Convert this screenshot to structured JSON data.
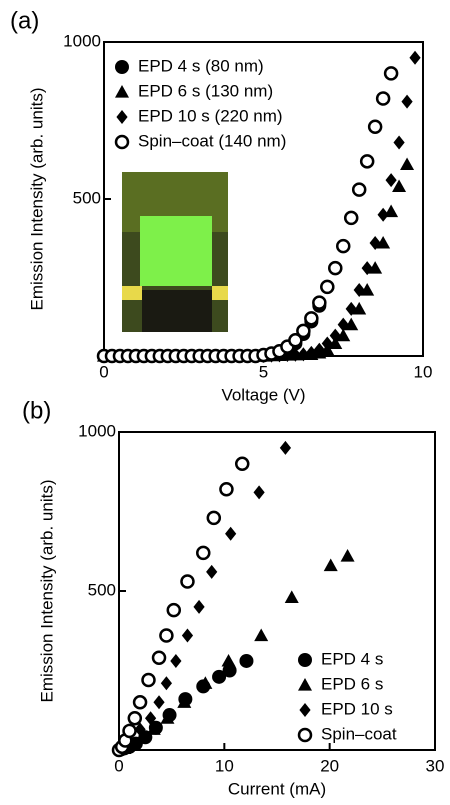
{
  "chart_data": [
    {
      "type": "scatter",
      "panel_label": "(a)",
      "x_label": "Voltage (V)",
      "y_label": "Emission Intensity (arb. units)",
      "xlim": [
        0,
        10
      ],
      "ylim": [
        0,
        1000
      ],
      "xticks": [
        0,
        5,
        10
      ],
      "yticks": [
        500,
        1000
      ],
      "legend": "upper left",
      "x": [
        0,
        0.25,
        0.5,
        0.75,
        1,
        1.25,
        1.5,
        1.75,
        2,
        2.25,
        2.5,
        2.75,
        3,
        3.25,
        3.5,
        3.75,
        4,
        4.25,
        4.5,
        4.75,
        5,
        5.25,
        5.5,
        5.75,
        6,
        6.25,
        6.5,
        6.75,
        7,
        7.25,
        7.5,
        7.75,
        8,
        8.25,
        8.5,
        8.75,
        9,
        9.25,
        9.5,
        9.75
      ],
      "series": [
        {
          "name": "EPD  4 s (80 nm)",
          "color": "#000000",
          "marker": "circle",
          "values": [
            0,
            0,
            0,
            0,
            0,
            0,
            0,
            0,
            0,
            0,
            0,
            0,
            0,
            0,
            0,
            0,
            0,
            0,
            0,
            0,
            2,
            5,
            10,
            20,
            40,
            70,
            110,
            160,
            220,
            280,
            null,
            null,
            null,
            null,
            null,
            null,
            null,
            null,
            null,
            null
          ]
        },
        {
          "name": "EPD  6 s (130 nm)",
          "color": "#000000",
          "marker": "triangle",
          "values": [
            0,
            0,
            0,
            0,
            0,
            0,
            0,
            0,
            0,
            0,
            0,
            0,
            0,
            0,
            0,
            0,
            0,
            0,
            0,
            0,
            0,
            1,
            2,
            3,
            4,
            5,
            5,
            10,
            20,
            40,
            65,
            100,
            150,
            210,
            280,
            360,
            460,
            540,
            610,
            null
          ]
        },
        {
          "name": "EPD 10 s (220 nm)",
          "color": "#000000",
          "marker": "diamond",
          "values": [
            0,
            0,
            0,
            0,
            0,
            0,
            0,
            0,
            0,
            0,
            0,
            0,
            0,
            0,
            0,
            0,
            0,
            0,
            0,
            0,
            0,
            1,
            2,
            3,
            4,
            5,
            10,
            20,
            40,
            65,
            100,
            150,
            210,
            280,
            360,
            450,
            560,
            680,
            810,
            950
          ]
        },
        {
          "name": "Spin–coat (140 nm)",
          "color": "#000000",
          "marker": "open-circle",
          "values": [
            0,
            0,
            0,
            0,
            0,
            0,
            0,
            0,
            0,
            0,
            0,
            0,
            0,
            0,
            0,
            0,
            0,
            0,
            0,
            0,
            3,
            8,
            15,
            30,
            50,
            80,
            120,
            170,
            220,
            280,
            350,
            440,
            530,
            620,
            730,
            820,
            900,
            null,
            null,
            null
          ]
        }
      ]
    },
    {
      "type": "scatter",
      "panel_label": "(b)",
      "x_label": "Current (mA)",
      "y_label": "Emission Intensity (arb. units)",
      "xlim": [
        0,
        30
      ],
      "ylim": [
        0,
        1000
      ],
      "xticks": [
        0,
        10,
        20,
        30
      ],
      "yticks": [
        500,
        1000
      ],
      "legend": "lower right",
      "series": [
        {
          "name": "EPD 4 s",
          "color": "#000000",
          "marker": "circle",
          "x": [
            0.2,
            0.5,
            1,
            1.6,
            2.5,
            3.5,
            4.8,
            6.3,
            8,
            9.5,
            10.5,
            12.1
          ],
          "values": [
            2,
            5,
            10,
            20,
            40,
            70,
            110,
            160,
            200,
            230,
            250,
            280
          ]
        },
        {
          "name": "EPD 6 s",
          "color": "#000000",
          "marker": "triangle",
          "x": [
            0.5,
            1.2,
            2.2,
            3.3,
            4.6,
            6.2,
            8.2,
            10.4,
            13.5,
            16.4,
            20.1,
            21.7
          ],
          "values": [
            5,
            20,
            40,
            65,
            100,
            150,
            210,
            280,
            360,
            480,
            580,
            610
          ]
        },
        {
          "name": "EPD 10 s",
          "color": "#000000",
          "marker": "diamond",
          "x": [
            0.3,
            1,
            2,
            3,
            3.8,
            4.5,
            5.4,
            6.5,
            7.6,
            8.8,
            10.6,
            13.3,
            15.8
          ],
          "values": [
            4,
            20,
            65,
            100,
            150,
            210,
            280,
            360,
            450,
            560,
            680,
            810,
            950
          ]
        },
        {
          "name": "Spin–coat",
          "color": "#000000",
          "marker": "open-circle",
          "x": [
            0,
            0.3,
            0.6,
            1,
            1.5,
            2,
            2.8,
            3.8,
            4.5,
            5.2,
            6.5,
            8,
            9,
            10.2,
            11.7
          ],
          "values": [
            0,
            10,
            30,
            60,
            100,
            150,
            220,
            290,
            360,
            440,
            530,
            620,
            730,
            820,
            900
          ]
        }
      ]
    }
  ]
}
